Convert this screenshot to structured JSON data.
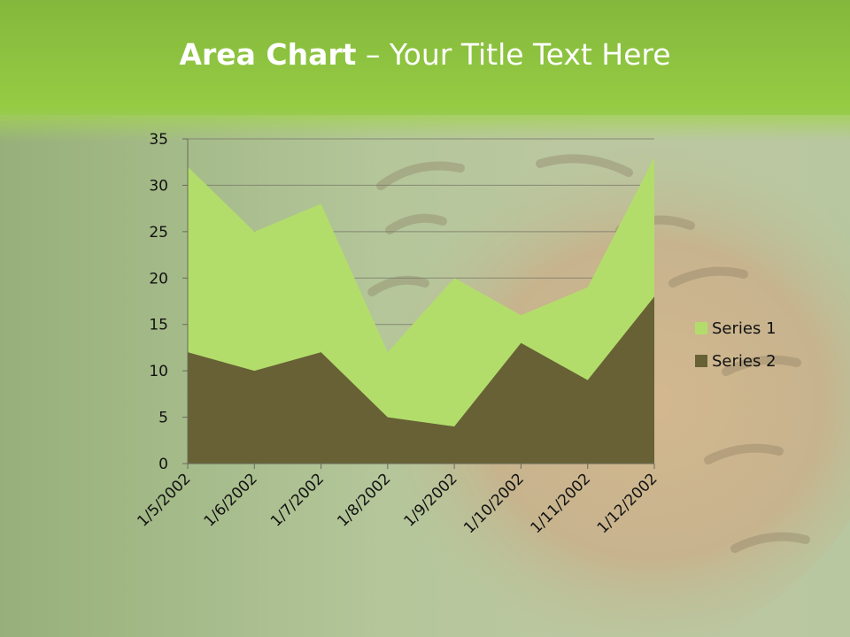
{
  "slide": {
    "title_bold": "Area Chart",
    "title_rest": " – Your Title Text Here"
  },
  "colors": {
    "series1": "#b3dd6b",
    "series2": "#676135",
    "header": "#8cc63e"
  },
  "chart_data": {
    "type": "area",
    "categories": [
      "1/5/2002",
      "1/6/2002",
      "1/7/2002",
      "1/8/2002",
      "1/9/2002",
      "1/10/2002",
      "1/11/2002",
      "1/12/2002"
    ],
    "series": [
      {
        "name": "Series 1",
        "values": [
          32,
          25,
          28,
          12,
          20,
          16,
          19,
          33
        ]
      },
      {
        "name": "Series 2",
        "values": [
          12,
          10,
          12,
          5,
          4,
          13,
          9,
          18
        ]
      }
    ],
    "ylim": [
      0,
      35
    ],
    "yticks": [
      0,
      5,
      10,
      15,
      20,
      25,
      30,
      35
    ],
    "grid": true,
    "legend": "right",
    "stacked": false
  }
}
